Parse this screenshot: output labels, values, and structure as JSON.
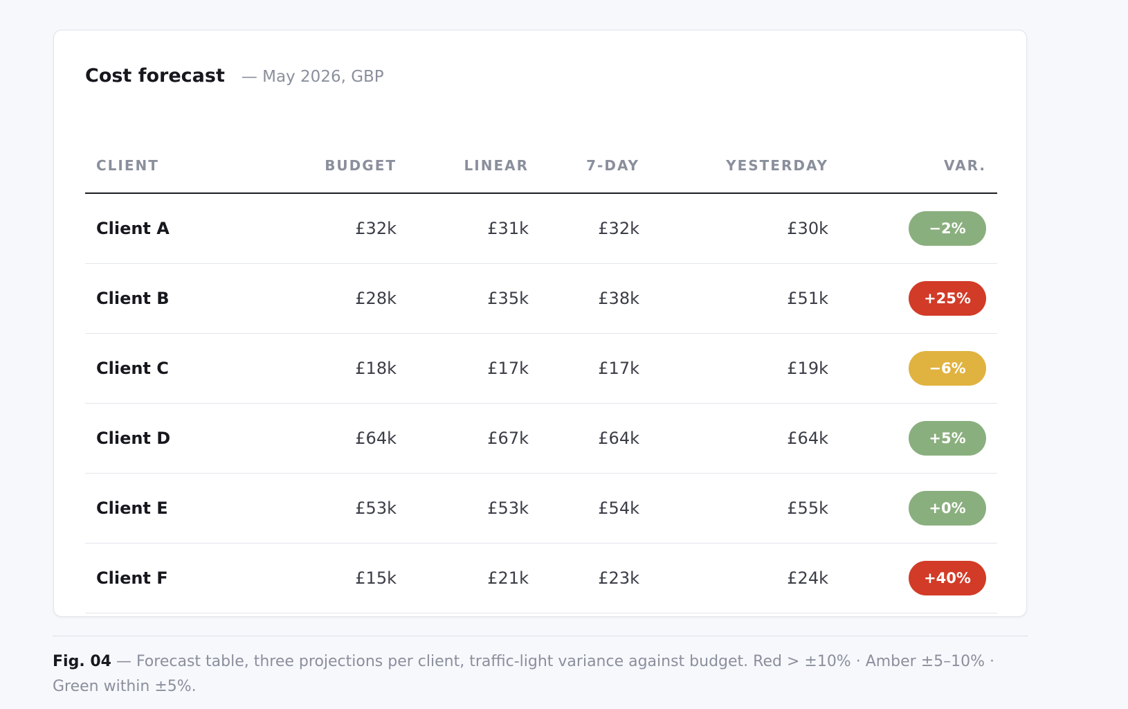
{
  "card": {
    "title": "Cost forecast",
    "subtitle": "— May 2026, GBP"
  },
  "chart_data": {
    "type": "table",
    "title": "Cost forecast",
    "subtitle": "— May 2026, GBP",
    "columns": [
      "CLIENT",
      "BUDGET",
      "LINEAR",
      "7-DAY",
      "YESTERDAY",
      "VAR."
    ],
    "rows": [
      {
        "client": "Client A",
        "budget": "£32k",
        "linear": "£31k",
        "seven_day": "£32k",
        "yesterday": "£30k",
        "variance": "−2%",
        "status": "green"
      },
      {
        "client": "Client B",
        "budget": "£28k",
        "linear": "£35k",
        "seven_day": "£38k",
        "yesterday": "£51k",
        "variance": "+25%",
        "status": "red"
      },
      {
        "client": "Client C",
        "budget": "£18k",
        "linear": "£17k",
        "seven_day": "£17k",
        "yesterday": "£19k",
        "variance": "−6%",
        "status": "amber"
      },
      {
        "client": "Client D",
        "budget": "£64k",
        "linear": "£67k",
        "seven_day": "£64k",
        "yesterday": "£64k",
        "variance": "+5%",
        "status": "green"
      },
      {
        "client": "Client E",
        "budget": "£53k",
        "linear": "£53k",
        "seven_day": "£54k",
        "yesterday": "£55k",
        "variance": "+0%",
        "status": "green"
      },
      {
        "client": "Client F",
        "budget": "£15k",
        "linear": "£21k",
        "seven_day": "£23k",
        "yesterday": "£24k",
        "variance": "+40%",
        "status": "red"
      }
    ],
    "status_colors": {
      "green": "#8aaf7e",
      "amber": "#e0b23f",
      "red": "#d23b27"
    }
  },
  "caption": {
    "lead": "Fig. 04",
    "text": " — Forecast table, three projections per client, traffic-light variance against budget. Red > ±10% · Amber ±5–10% · Green within ±5%."
  }
}
